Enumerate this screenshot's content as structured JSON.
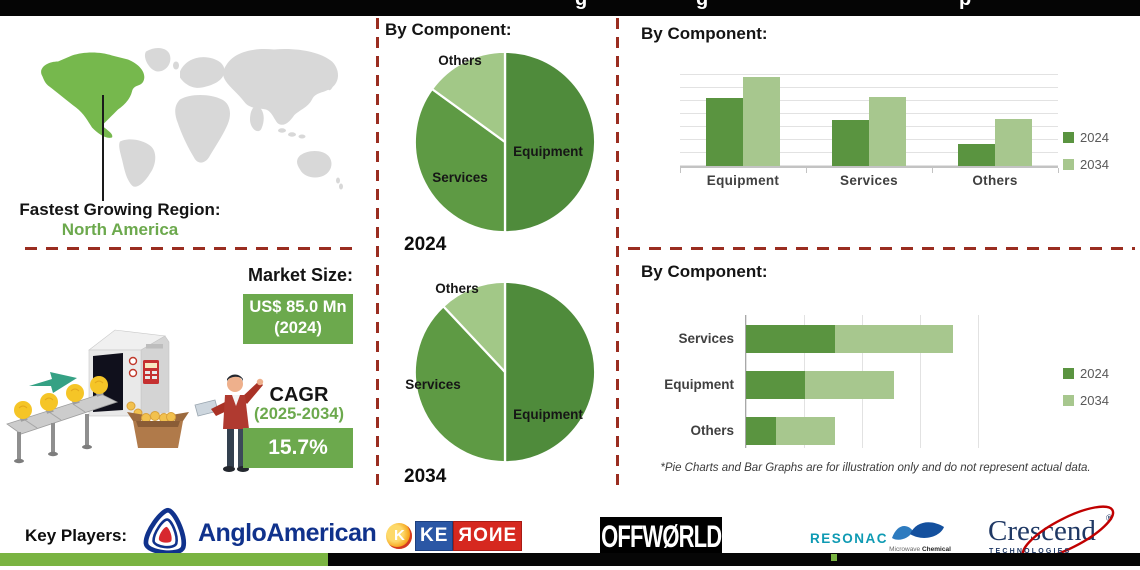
{
  "header": {
    "title_fragments": [
      "g",
      "g",
      "p"
    ]
  },
  "colors": {
    "accent_green": "#6ca94d",
    "dark_green": "#5a9440",
    "light_green": "#a7c78e",
    "pie_equipment": "#4f8b3b",
    "pie_services": "#5e9a44",
    "pie_others": "#a2c887",
    "dashed_red": "#9a2d20",
    "map_gray": "#d8d8d8",
    "map_na_green": "#76b84d",
    "strip_green": "#7ab442"
  },
  "region": {
    "label": "Fastest Growing Region:",
    "value": "North America"
  },
  "market": {
    "size_label": "Market Size:",
    "size_value": "US$ 85.0 Mn",
    "size_year": "(2024)",
    "cagr_label": "CAGR",
    "cagr_period": "(2025-2034)",
    "cagr_value": "15.7%"
  },
  "chart_data": [
    {
      "type": "pie",
      "title": "By Component:",
      "caption": "2024",
      "slices": [
        {
          "label": "Equipment",
          "value": 50
        },
        {
          "label": "Services",
          "value": 35
        },
        {
          "label": "Others",
          "value": 15
        }
      ]
    },
    {
      "type": "pie",
      "title": "By Component:",
      "caption": "2034",
      "slices": [
        {
          "label": "Equipment",
          "value": 50
        },
        {
          "label": "Services",
          "value": 38
        },
        {
          "label": "Others",
          "value": 12
        }
      ]
    },
    {
      "type": "bar",
      "title": "By Component:",
      "categories": [
        "Equipment",
        "Services",
        "Others"
      ],
      "series": [
        {
          "name": "2024",
          "values": [
            65,
            44,
            21
          ]
        },
        {
          "name": "2034",
          "values": [
            86,
            66,
            45
          ]
        }
      ],
      "ylim": [
        0,
        100
      ],
      "grid": true,
      "legend_position": "right"
    },
    {
      "type": "bar-horizontal-stacked",
      "title": "By Component:",
      "categories": [
        "Services",
        "Equipment",
        "Others"
      ],
      "series": [
        {
          "name": "2024",
          "values": [
            0.45,
            0.3,
            0.15
          ]
        },
        {
          "name": "2034",
          "values": [
            0.6,
            0.45,
            0.3
          ]
        }
      ],
      "xlim": [
        0,
        1.2
      ],
      "grid": true,
      "legend_position": "right",
      "footnote": "*Pie Charts and Bar Graphs are for illustration only and do not represent actual data."
    }
  ],
  "key_players": {
    "label": "Key Players:",
    "players": [
      "AngloAmerican",
      "KERONE",
      "OffWorld",
      "RESONAC",
      "Microwave Chemical",
      "Crescend Technologies"
    ],
    "anglo": {
      "text": "AngloAmerican"
    },
    "kerone": {
      "icon_letter": "K",
      "left": "KE",
      "right": "ЯOИE"
    },
    "offworld": {
      "text": "OFFWØRLD"
    },
    "resonac": {
      "text": "RESONAC"
    },
    "microwave": {
      "line1": "Microwave",
      "line2": "Chemical"
    },
    "crescend": {
      "text": "Crescend",
      "reg": "®",
      "sub": "TECHNOLOGIES"
    }
  }
}
